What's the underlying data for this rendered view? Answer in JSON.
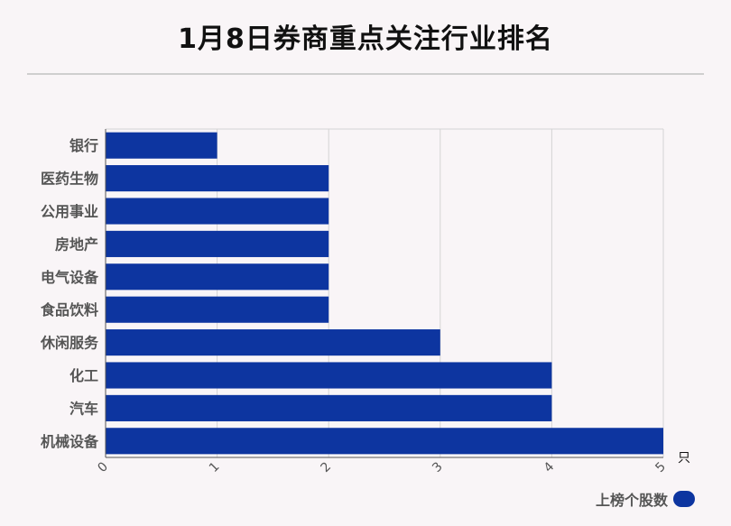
{
  "title": "1月8日券商重点关注行业排名",
  "chart_data": {
    "type": "bar",
    "orientation": "horizontal",
    "categories": [
      "银行",
      "医药生物",
      "公用事业",
      "房地产",
      "电气设备",
      "食品饮料",
      "休闲服务",
      "化工",
      "汽车",
      "机械设备"
    ],
    "series": [
      {
        "name": "上榜个股数",
        "values": [
          1,
          2,
          2,
          2,
          2,
          2,
          3,
          4,
          4,
          5
        ]
      }
    ],
    "xlim": [
      0,
      5
    ],
    "xticks": [
      "0",
      "1",
      "2",
      "3",
      "4",
      "5"
    ],
    "xunit": "只",
    "grid": true,
    "legend": "bottom-right",
    "color": "#0d35a0"
  }
}
